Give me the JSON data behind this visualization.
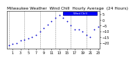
{
  "title": "Milwaukee Weather  Wind Chill  Hourly Average  (24 Hours)",
  "hours": [
    0,
    1,
    2,
    3,
    4,
    5,
    6,
    7,
    8,
    9,
    10,
    11,
    12,
    13,
    14,
    15,
    16,
    17,
    18,
    19,
    20,
    21,
    22,
    23
  ],
  "wind_chill": [
    -22,
    -21,
    -20,
    -18,
    -17,
    -16,
    -15,
    -13,
    -10,
    -7,
    -4,
    -1,
    2,
    4,
    2,
    -1,
    -5,
    -8,
    -8,
    -10,
    -13,
    -15,
    -8,
    -6
  ],
  "dot_color": "#0000cc",
  "bg_color": "#ffffff",
  "grid_color": "#888888",
  "legend_facecolor": "#0000ff",
  "legend_edgecolor": "#000099",
  "ylim": [
    -25,
    8
  ],
  "yticks": [
    -20,
    -15,
    -10,
    -5,
    0,
    5
  ],
  "xlim": [
    -0.5,
    23.5
  ],
  "xticks": [
    1,
    3,
    5,
    7,
    9,
    11,
    13,
    15,
    17,
    19,
    21,
    23
  ],
  "title_fontsize": 4.2,
  "tick_fontsize": 3.5
}
